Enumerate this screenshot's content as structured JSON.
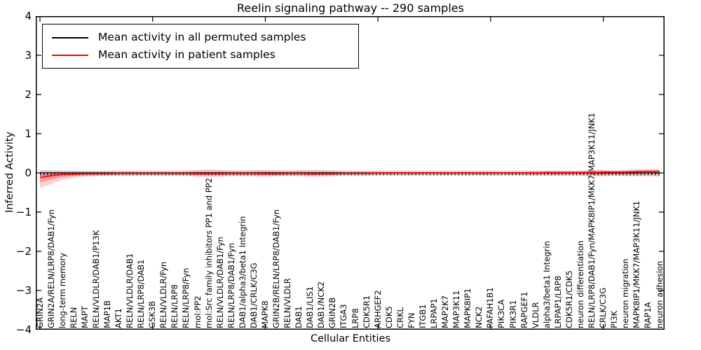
{
  "figure": {
    "title": "Reelin signaling pathway -- 290 samples",
    "xlabel": "Cellular Entities",
    "ylabel": "Inferred Activity"
  },
  "legend": {
    "entries": [
      {
        "label": "Mean activity in all permuted samples",
        "color": "#000000"
      },
      {
        "label": "Mean activity in patient samples",
        "color": "#ff0000"
      }
    ]
  },
  "axes": {
    "yticks": [
      "4",
      "3",
      "2",
      "1",
      "0",
      "−1",
      "−2",
      "−3",
      "−4"
    ],
    "ylim": [
      -4,
      4
    ],
    "major_x_tick_indices": [
      0,
      10,
      20,
      30,
      40,
      50
    ]
  },
  "colors": {
    "permuted_line": "#000000",
    "patient_line": "#ff0000",
    "patient_band": "#ff0000",
    "permuted_band": "#c8c8c8",
    "spine": "#000000"
  },
  "chart_data": {
    "type": "line",
    "title": "Reelin signaling pathway -- 290 samples",
    "xlabel": "Cellular Entities",
    "ylabel": "Inferred Activity",
    "ylim": [
      -4,
      4
    ],
    "grid": false,
    "legend_position": "upper left",
    "categories": [
      "GRIN2A",
      "GRIN2A/RELN/LRP8/DAB1/Fyn",
      "long-term memory",
      "RELN",
      "MAPT",
      "RELN/VLDLR/DAB1/P13K",
      "MAP1B",
      "AKT1",
      "RELN/VLDLR/DAB1",
      "RELN/LRP8/DAB1",
      "GSK3B",
      "RELN/VLDLR/Fyn",
      "RELN/LRP8",
      "RELN/LRP8/Fyn",
      "mol:PP2",
      "mol:Src family inhibitors PP1 and PP2",
      "RELN/VLDLR/DAB1/Fyn",
      "RELN/LRP8/DAB1/Fyn",
      "DAB1/alpha3/beta1 Integrin",
      "DAB1/CRLK/C3G",
      "MAPK8",
      "GRIN2B/RELN/LRP8/DAB1/Fyn",
      "RELN/VLDLR",
      "DAB1",
      "DAB1/LIS1",
      "DAB1/NCK2",
      "GRIN2B",
      "ITGA3",
      "LRP8",
      "CDK5R1",
      "ARHGEF2",
      "CDK5",
      "CRKL",
      "FYN",
      "ITGB1",
      "LRPAP1",
      "MAP2K7",
      "MAP3K11",
      "MAPK8IP1",
      "NCK2",
      "PAFAH1B1",
      "PIK3CA",
      "PIK3R1",
      "RAPGEF1",
      "VLDLR",
      "alpha3/beta1 Integrin",
      "LRPAP1/LRP8",
      "CDK5R1/CDK5",
      "neuron differentiation",
      "RELN/LRP8/DAB1/Fyn/MAPK8IP1/MKK7/MAP3K11/JNK1",
      "CRLK/C3G",
      "PI3K",
      "neuron migration",
      "MAPK8IP1/MKK7/MAP3K11/JNK1",
      "RAP1A",
      "neuron adhesion"
    ],
    "series": [
      {
        "name": "Mean activity in all permuted samples",
        "color": "#000000",
        "values": [
          0,
          0,
          0,
          0,
          0,
          0,
          0,
          0,
          0,
          0,
          0,
          0,
          0,
          0,
          0,
          0,
          0,
          0,
          0,
          0,
          0,
          0,
          0,
          0,
          0,
          0,
          0,
          0,
          0,
          0,
          0,
          0,
          0,
          0,
          0,
          0,
          0,
          0,
          0,
          0,
          0,
          0,
          0,
          0,
          0,
          0,
          0,
          0,
          0,
          0,
          0,
          0,
          0,
          0,
          0,
          0
        ],
        "band_upper": [
          0.08,
          0.07,
          0.06,
          0.06,
          0.06,
          0.06,
          0.06,
          0.06,
          0.06,
          0.06,
          0.06,
          0.06,
          0.06,
          0.06,
          0.06,
          0.06,
          0.06,
          0.06,
          0.06,
          0.06,
          0.06,
          0.06,
          0.06,
          0.06,
          0.06,
          0.06,
          0.06,
          0.06,
          0.06,
          0.06,
          0.06,
          0.06,
          0.06,
          0.06,
          0.06,
          0.06,
          0.06,
          0.06,
          0.06,
          0.06,
          0.06,
          0.06,
          0.06,
          0.06,
          0.06,
          0.06,
          0.06,
          0.06,
          0.06,
          0.06,
          0.06,
          0.06,
          0.06,
          0.06,
          0.06,
          0.06
        ],
        "band_lower": [
          -0.12,
          -0.1,
          -0.08,
          -0.07,
          -0.07,
          -0.07,
          -0.07,
          -0.07,
          -0.07,
          -0.07,
          -0.07,
          -0.07,
          -0.07,
          -0.07,
          -0.07,
          -0.07,
          -0.07,
          -0.07,
          -0.07,
          -0.07,
          -0.07,
          -0.07,
          -0.07,
          -0.07,
          -0.07,
          -0.07,
          -0.07,
          -0.07,
          -0.07,
          -0.07,
          -0.07,
          -0.07,
          -0.07,
          -0.07,
          -0.07,
          -0.07,
          -0.07,
          -0.07,
          -0.07,
          -0.07,
          -0.07,
          -0.07,
          -0.07,
          -0.07,
          -0.07,
          -0.07,
          -0.07,
          -0.07,
          -0.07,
          -0.07,
          -0.07,
          -0.07,
          -0.07,
          -0.07,
          -0.07,
          -0.07
        ]
      },
      {
        "name": "Mean activity in patient samples",
        "color": "#ff0000",
        "values": [
          -0.12,
          -0.07,
          -0.04,
          -0.03,
          -0.02,
          -0.02,
          -0.02,
          -0.01,
          -0.01,
          -0.01,
          -0.01,
          -0.01,
          -0.01,
          -0.01,
          -0.02,
          -0.02,
          -0.02,
          -0.01,
          -0.01,
          -0.01,
          -0.02,
          -0.02,
          -0.01,
          -0.01,
          -0.02,
          -0.02,
          -0.02,
          -0.01,
          -0.01,
          -0.01,
          0,
          0,
          0,
          0,
          0,
          0,
          0,
          0,
          0,
          0,
          0,
          0,
          0,
          0,
          0,
          0.01,
          0.01,
          0.01,
          0.01,
          0.01,
          0.02,
          0.02,
          0.02,
          0.03,
          0.04,
          0.04
        ],
        "band_upper": [
          0.05,
          0.05,
          0.05,
          0.05,
          0.04,
          0.04,
          0.04,
          0.04,
          0.04,
          0.04,
          0.04,
          0.04,
          0.04,
          0.05,
          0.08,
          0.09,
          0.08,
          0.06,
          0.06,
          0.07,
          0.08,
          0.07,
          0.06,
          0.07,
          0.08,
          0.08,
          0.06,
          0.04,
          0.04,
          0.04,
          0.04,
          0.04,
          0.04,
          0.04,
          0.04,
          0.04,
          0.04,
          0.04,
          0.04,
          0.04,
          0.04,
          0.04,
          0.04,
          0.04,
          0.05,
          0.05,
          0.05,
          0.05,
          0.05,
          0.08,
          0.08,
          0.06,
          0.08,
          0.1,
          0.1,
          0.1
        ],
        "band_lower": [
          -0.4,
          -0.28,
          -0.18,
          -0.13,
          -0.1,
          -0.08,
          -0.07,
          -0.06,
          -0.06,
          -0.06,
          -0.06,
          -0.06,
          -0.06,
          -0.07,
          -0.1,
          -0.11,
          -0.1,
          -0.08,
          -0.08,
          -0.09,
          -0.1,
          -0.09,
          -0.07,
          -0.08,
          -0.1,
          -0.1,
          -0.08,
          -0.06,
          -0.06,
          -0.06,
          -0.05,
          -0.05,
          -0.05,
          -0.05,
          -0.05,
          -0.05,
          -0.05,
          -0.05,
          -0.05,
          -0.05,
          -0.05,
          -0.05,
          -0.05,
          -0.05,
          -0.06,
          -0.06,
          -0.06,
          -0.06,
          -0.06,
          -0.09,
          -0.09,
          -0.07,
          -0.08,
          -0.09,
          -0.09,
          -0.1
        ]
      }
    ]
  }
}
